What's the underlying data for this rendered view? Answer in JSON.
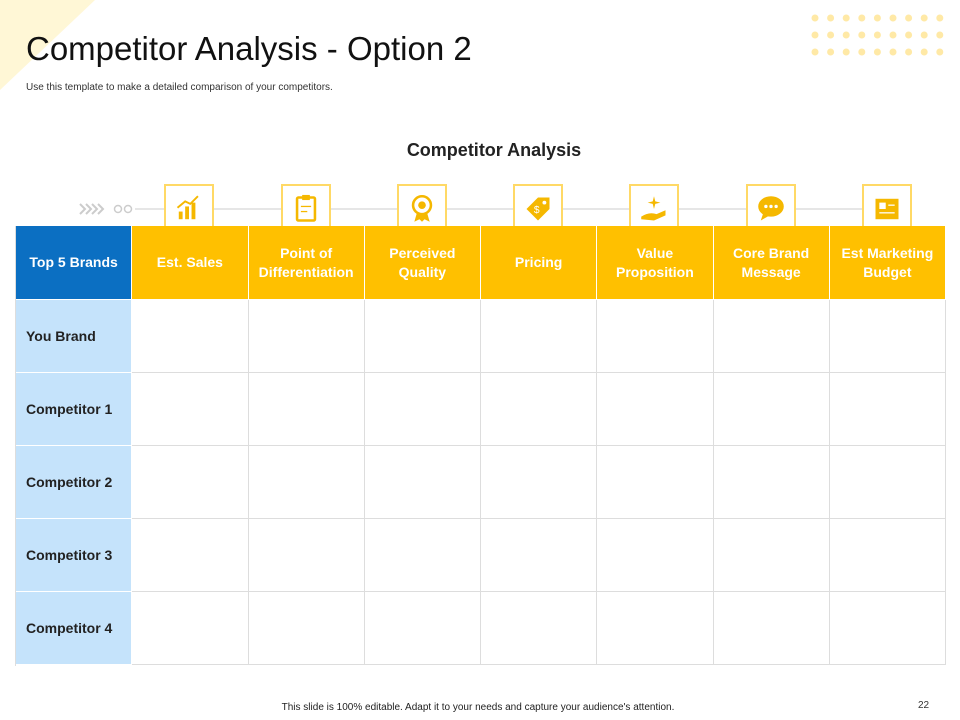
{
  "header": {
    "title": "Competitor Analysis - Option 2",
    "subtitle": "Use this template to make a detailed comparison of your competitors."
  },
  "table": {
    "title": "Competitor Analysis",
    "columns": [
      "Top 5 Brands",
      "Est. Sales",
      "Point of Differentiation",
      "Perceived Quality",
      "Pricing",
      "Value Proposition",
      "Core Brand Message",
      "Est Marketing Budget"
    ],
    "rows": [
      "You Brand",
      "Competitor 1",
      "Competitor 2",
      "Competitor 3",
      "Competitor 4"
    ]
  },
  "footer": {
    "text": "This slide is 100% editable. Adapt it to your needs and capture your audience's attention.",
    "page_number": 22
  }
}
